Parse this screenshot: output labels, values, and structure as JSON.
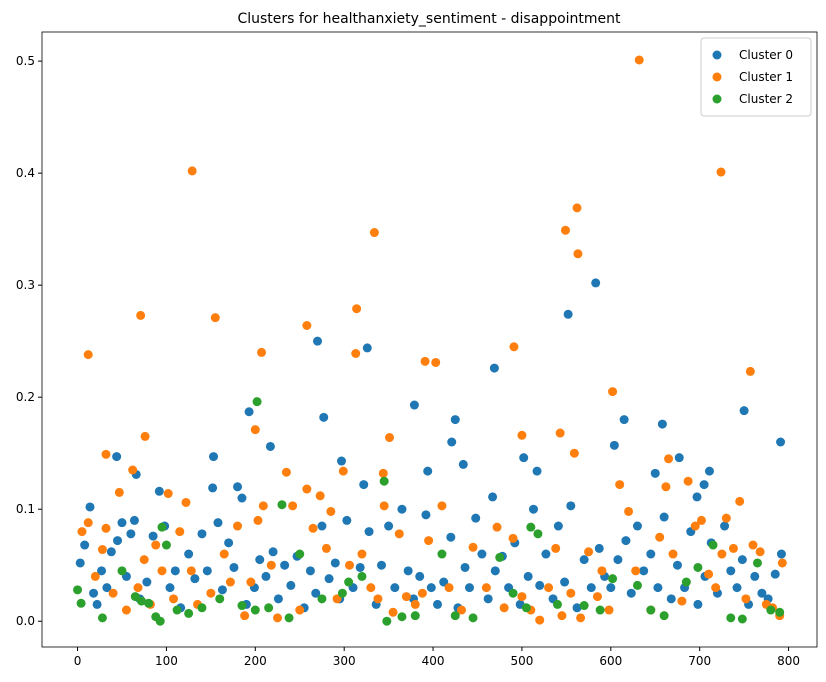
{
  "chart_data": {
    "type": "scatter",
    "title": "Clusters for healthanxiety_sentiment - disappointment",
    "xlim": [
      -40,
      832
    ],
    "ylim": [
      -0.023,
      0.526
    ],
    "xticks": [
      0,
      100,
      200,
      300,
      400,
      500,
      600,
      700,
      800
    ],
    "yticks": [
      {
        "value": 0,
        "label": "0.0"
      },
      0.1,
      0.2,
      0.3,
      0.4,
      0.5
    ],
    "legend": "upper right",
    "series": [
      {
        "name": "Cluster 0",
        "color": "#1f77b4",
        "x": [
          3,
          8,
          14,
          18,
          22,
          27,
          33,
          38,
          45,
          50,
          55,
          60,
          64,
          70,
          78,
          85,
          92,
          98,
          104,
          110,
          116,
          125,
          132,
          140,
          146,
          158,
          163,
          170,
          176,
          185,
          190,
          199,
          205,
          212,
          220,
          226,
          233,
          240,
          247,
          255,
          262,
          268,
          275,
          283,
          290,
          295,
          303,
          310,
          318,
          328,
          336,
          342,
          350,
          357,
          365,
          372,
          378,
          385,
          392,
          398,
          405,
          412,
          420,
          428,
          436,
          441,
          448,
          455,
          462,
          470,
          478,
          485,
          492,
          498,
          507,
          513,
          520,
          527,
          535,
          541,
          548,
          555,
          562,
          570,
          578,
          587,
          593,
          600,
          608,
          617,
          623,
          630,
          637,
          645,
          653,
          660,
          668,
          675,
          683,
          690,
          698,
          706,
          713,
          720,
          728,
          735,
          742,
          748,
          755,
          762,
          770,
          777,
          785,
          792,
          270,
          326,
          469,
          583,
          552,
          193,
          277,
          379,
          425,
          615,
          658,
          750,
          791,
          217,
          421,
          604,
          44,
          153,
          434,
          297,
          677,
          502,
          517,
          394,
          66,
          650,
          711,
          322,
          180,
          152,
          467,
          697,
          705
        ],
        "values": [
          0.052,
          0.068,
          0.102,
          0.025,
          0.015,
          0.045,
          0.03,
          0.062,
          0.072,
          0.088,
          0.04,
          0.078,
          0.09,
          0.02,
          0.035,
          0.076,
          0.116,
          0.085,
          0.03,
          0.045,
          0.012,
          0.06,
          0.038,
          0.078,
          0.045,
          0.088,
          0.028,
          0.07,
          0.048,
          0.11,
          0.015,
          0.03,
          0.055,
          0.04,
          0.062,
          0.02,
          0.05,
          0.032,
          0.058,
          0.012,
          0.045,
          0.025,
          0.085,
          0.038,
          0.052,
          0.02,
          0.09,
          0.03,
          0.048,
          0.08,
          0.015,
          0.05,
          0.085,
          0.03,
          0.1,
          0.045,
          0.02,
          0.04,
          0.095,
          0.03,
          0.015,
          0.035,
          0.075,
          0.012,
          0.048,
          0.03,
          0.092,
          0.06,
          0.02,
          0.045,
          0.058,
          0.03,
          0.07,
          0.015,
          0.04,
          0.1,
          0.032,
          0.06,
          0.02,
          0.085,
          0.035,
          0.103,
          0.012,
          0.055,
          0.03,
          0.065,
          0.04,
          0.03,
          0.055,
          0.072,
          0.025,
          0.085,
          0.045,
          0.06,
          0.03,
          0.093,
          0.02,
          0.05,
          0.03,
          0.08,
          0.015,
          0.04,
          0.07,
          0.025,
          0.085,
          0.045,
          0.03,
          0.055,
          0.015,
          0.04,
          0.025,
          0.02,
          0.042,
          0.06,
          0.25,
          0.244,
          0.226,
          0.302,
          0.274,
          0.187,
          0.182,
          0.193,
          0.18,
          0.18,
          0.176,
          0.188,
          0.16,
          0.156,
          0.16,
          0.157,
          0.147,
          0.147,
          0.14,
          0.143,
          0.146,
          0.146,
          0.134,
          0.134,
          0.131,
          0.132,
          0.134,
          0.122,
          0.12,
          0.119,
          0.111,
          0.111,
          0.122
        ]
      },
      {
        "name": "Cluster 1",
        "color": "#ff7f0e",
        "x": [
          5,
          12,
          20,
          28,
          32,
          40,
          47,
          55,
          62,
          68,
          75,
          82,
          88,
          95,
          102,
          108,
          115,
          122,
          128,
          135,
          150,
          165,
          172,
          180,
          188,
          195,
          203,
          209,
          218,
          225,
          235,
          242,
          250,
          258,
          265,
          273,
          280,
          285,
          292,
          299,
          306,
          320,
          330,
          338,
          345,
          355,
          362,
          370,
          380,
          388,
          395,
          410,
          418,
          432,
          445,
          460,
          472,
          480,
          490,
          500,
          510,
          520,
          530,
          538,
          545,
          555,
          566,
          575,
          585,
          590,
          598,
          610,
          620,
          628,
          645,
          655,
          662,
          670,
          680,
          687,
          695,
          702,
          710,
          718,
          725,
          730,
          738,
          745,
          752,
          760,
          768,
          775,
          782,
          790,
          793,
          12,
          129,
          71,
          155,
          207,
          258,
          334,
          313,
          314,
          391,
          403,
          491,
          549,
          562,
          563,
          632,
          724,
          757,
          602,
          32,
          76,
          200,
          500,
          543,
          559,
          665,
          351,
          344
        ],
        "values": [
          0.08,
          0.088,
          0.04,
          0.064,
          0.083,
          0.025,
          0.115,
          0.01,
          0.135,
          0.03,
          0.055,
          0.015,
          0.068,
          0.045,
          0.114,
          0.02,
          0.08,
          0.106,
          0.045,
          0.015,
          0.025,
          0.06,
          0.035,
          0.085,
          0.005,
          0.035,
          0.09,
          0.103,
          0.05,
          0.003,
          0.133,
          0.103,
          0.01,
          0.118,
          0.083,
          0.112,
          0.065,
          0.098,
          0.02,
          0.134,
          0.05,
          0.06,
          0.03,
          0.02,
          0.103,
          0.008,
          0.078,
          0.022,
          0.015,
          0.025,
          0.072,
          0.103,
          0.03,
          0.01,
          0.066,
          0.03,
          0.084,
          0.012,
          0.074,
          0.022,
          0.01,
          0.001,
          0.03,
          0.065,
          0.005,
          0.025,
          0.003,
          0.062,
          0.022,
          0.045,
          0.01,
          0.122,
          0.098,
          0.045,
          0.01,
          0.075,
          0.12,
          0.06,
          0.018,
          0.125,
          0.085,
          0.09,
          0.042,
          0.03,
          0.06,
          0.092,
          0.065,
          0.107,
          0.02,
          0.068,
          0.062,
          0.015,
          0.012,
          0.005,
          0.052,
          0.238,
          0.402,
          0.273,
          0.271,
          0.24,
          0.264,
          0.347,
          0.239,
          0.279,
          0.232,
          0.231,
          0.245,
          0.349,
          0.369,
          0.328,
          0.501,
          0.401,
          0.223,
          0.205,
          0.149,
          0.165,
          0.171,
          0.166,
          0.168,
          0.15,
          0.145,
          0.164,
          0.132
        ]
      },
      {
        "name": "Cluster 2",
        "color": "#2ca02c",
        "x": [
          0,
          4,
          28,
          50,
          65,
          72,
          80,
          88,
          93,
          100,
          112,
          125,
          140,
          160,
          185,
          200,
          215,
          238,
          250,
          275,
          298,
          305,
          320,
          348,
          365,
          380,
          410,
          425,
          445,
          475,
          490,
          505,
          518,
          540,
          570,
          588,
          602,
          630,
          645,
          660,
          685,
          698,
          715,
          735,
          748,
          765,
          780,
          790,
          202,
          345,
          230,
          95,
          510
        ],
        "values": [
          0.028,
          0.016,
          0.003,
          0.045,
          0.022,
          0.018,
          0.016,
          0.004,
          0.0,
          0.068,
          0.01,
          0.007,
          0.012,
          0.02,
          0.014,
          0.01,
          0.012,
          0.003,
          0.06,
          0.02,
          0.025,
          0.035,
          0.04,
          0.0,
          0.004,
          0.005,
          0.06,
          0.005,
          0.003,
          0.057,
          0.025,
          0.012,
          0.078,
          0.015,
          0.014,
          0.01,
          0.038,
          0.032,
          0.01,
          0.005,
          0.035,
          0.048,
          0.068,
          0.003,
          0.002,
          0.052,
          0.01,
          0.008,
          0.196,
          0.125,
          0.104,
          0.084,
          0.084
        ]
      }
    ]
  }
}
